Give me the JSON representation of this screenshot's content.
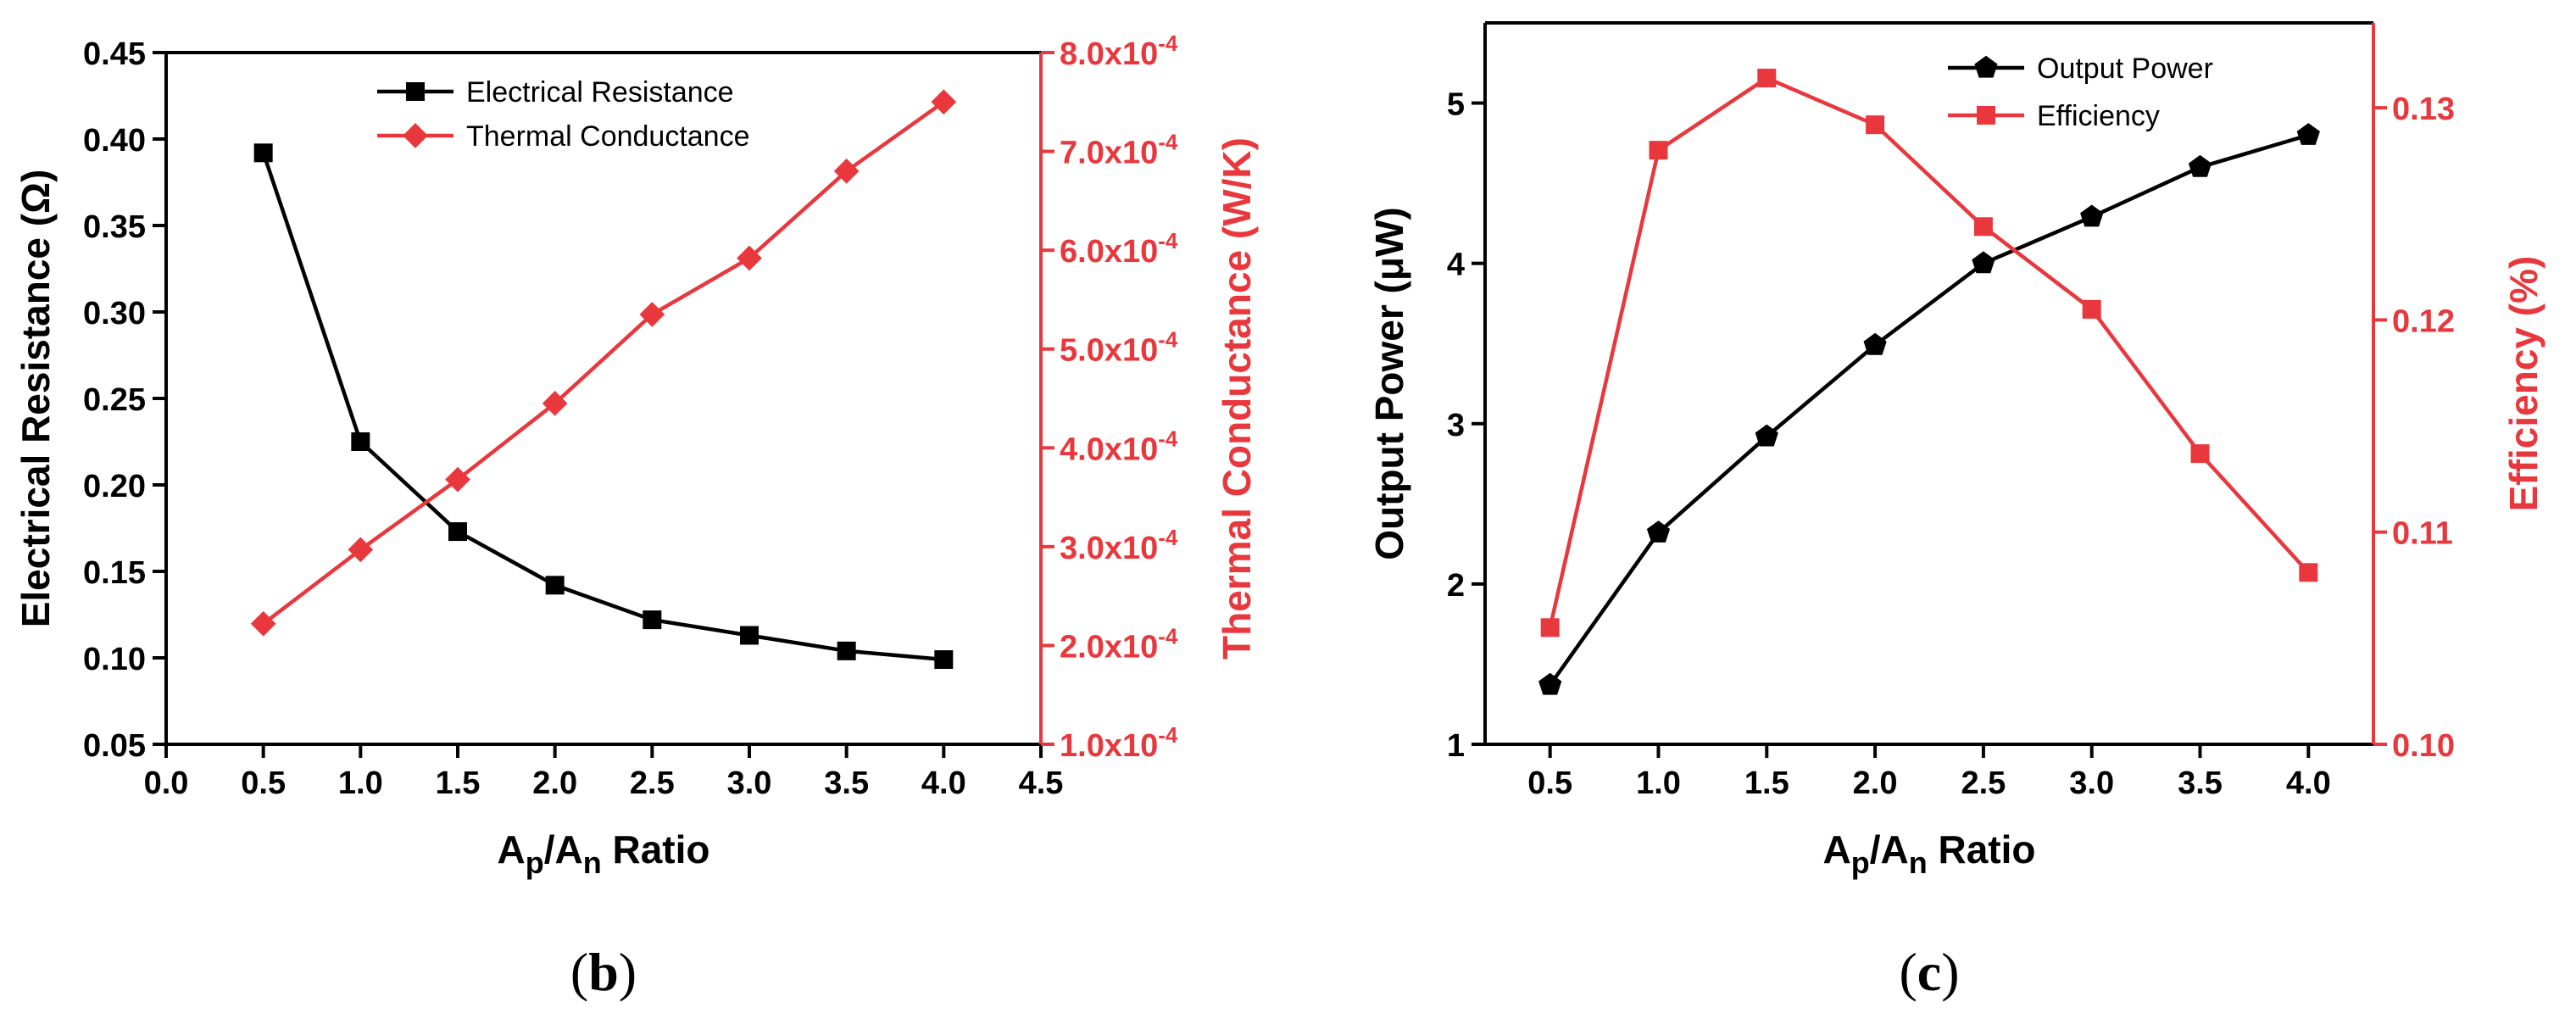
{
  "colors": {
    "black": "#000000",
    "red": "#e8383d"
  },
  "chart_data": [
    {
      "id": "b",
      "type": "line",
      "panel_label": "(b)",
      "panel_letter": "b",
      "x": [
        0.5,
        1.0,
        1.5,
        2.0,
        2.5,
        3.0,
        3.5,
        4.0
      ],
      "xlim": [
        0.0,
        4.5
      ],
      "xticks": [
        "0.0",
        "0.5",
        "1.0",
        "1.5",
        "2.0",
        "2.5",
        "3.0",
        "3.5",
        "4.0",
        "4.5"
      ],
      "xlabel": {
        "A": "A",
        "p": "p",
        "slash": "/A",
        "n": "n",
        "rest": " Ratio"
      },
      "ylabel_left": "Electrical Resistance (Ω)",
      "ylabel_right": "Thermal Conductance (W/K)",
      "ylim_left": [
        0.05,
        0.45
      ],
      "yticks_left": [
        "0.05",
        "0.10",
        "0.15",
        "0.20",
        "0.25",
        "0.30",
        "0.35",
        "0.40",
        "0.45"
      ],
      "ylim_right": [
        0.0001,
        0.0008
      ],
      "yticks_right": [
        {
          "mant": "1.0x10",
          "exp": "-4"
        },
        {
          "mant": "2.0x10",
          "exp": "-4"
        },
        {
          "mant": "3.0x10",
          "exp": "-4"
        },
        {
          "mant": "4.0x10",
          "exp": "-4"
        },
        {
          "mant": "5.0x10",
          "exp": "-4"
        },
        {
          "mant": "6.0x10",
          "exp": "-4"
        },
        {
          "mant": "7.0x10",
          "exp": "-4"
        },
        {
          "mant": "8.0x10",
          "exp": "-4"
        }
      ],
      "series": [
        {
          "name": "Electrical Resistance",
          "axis": "left",
          "marker": "square",
          "color": "#000000",
          "values": [
            0.392,
            0.225,
            0.173,
            0.142,
            0.122,
            0.113,
            0.104,
            0.099
          ]
        },
        {
          "name": "Thermal Conductance",
          "axis": "right",
          "marker": "diamond",
          "color": "#e8383d",
          "values": [
            0.000222,
            0.000297,
            0.000368,
            0.000445,
            0.000535,
            0.000592,
            0.00068,
            0.00075
          ]
        }
      ],
      "legend_position": "top-center"
    },
    {
      "id": "c",
      "type": "line",
      "panel_label": "(c)",
      "panel_letter": "c",
      "x": [
        0.5,
        1.0,
        1.5,
        2.0,
        2.5,
        3.0,
        3.5,
        4.0
      ],
      "xlim": [
        0.2,
        4.3
      ],
      "xticks": [
        "0.5",
        "1.0",
        "1.5",
        "2.0",
        "2.5",
        "3.0",
        "3.5",
        "4.0"
      ],
      "xlabel": {
        "A": "A",
        "p": "p",
        "slash": "/A",
        "n": "n",
        "rest": " Ratio"
      },
      "ylabel_left": "Output Power (μW)",
      "ylabel_right": "Efficiency (%)",
      "ylim_left": [
        1,
        5.5
      ],
      "yticks_left": [
        "1",
        "2",
        "3",
        "4",
        "5"
      ],
      "ylim_right": [
        0.1,
        0.134
      ],
      "yticks_right": [
        "0.10",
        "0.11",
        "0.12",
        "0.13"
      ],
      "series": [
        {
          "name": "Output Power",
          "axis": "left",
          "marker": "pentagon",
          "color": "#000000",
          "values": [
            1.37,
            2.32,
            2.92,
            3.49,
            4.0,
            4.29,
            4.6,
            4.8
          ]
        },
        {
          "name": "Efficiency",
          "axis": "right",
          "marker": "square",
          "color": "#e8383d",
          "values": [
            0.1055,
            0.128,
            0.1314,
            0.1292,
            0.1244,
            0.1205,
            0.1137,
            0.1081
          ]
        }
      ],
      "legend_position": "top-right"
    }
  ]
}
